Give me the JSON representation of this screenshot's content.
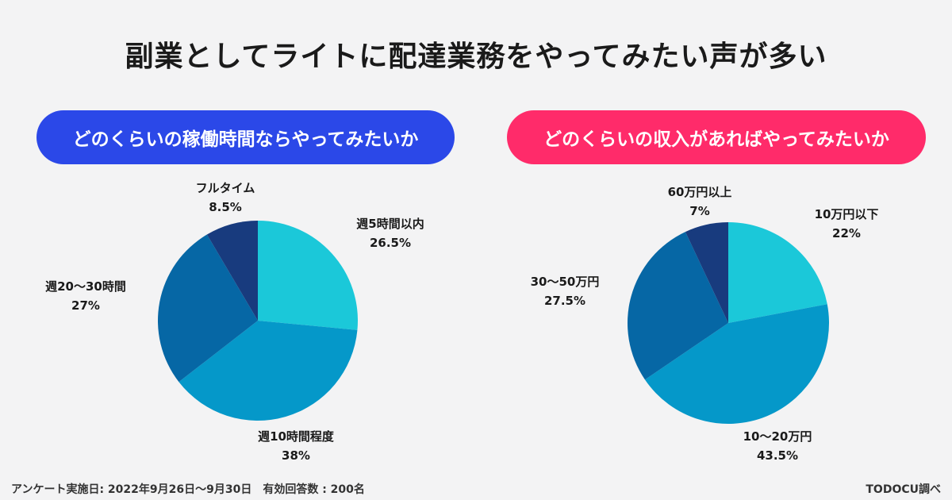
{
  "title": "副業としてライトに配達業務をやってみたい声が多い",
  "footer": {
    "survey": "アンケート実施日: 2022年9月26日〜9月30日　有効回答数 : 200名",
    "source": "TODOCU調べ"
  },
  "chart_data": [
    {
      "type": "pie",
      "title": "どのくらいの稼働時間ならやってみたいか",
      "header_color": "#2b48e8",
      "slices": [
        {
          "label": "週5時間以内",
          "value": 26.5,
          "value_label": "26.5%",
          "color": "#1bc8d9"
        },
        {
          "label": "週10時間程度",
          "value": 38,
          "value_label": "38%",
          "color": "#0598c9"
        },
        {
          "label": "週20〜30時間",
          "value": 27,
          "value_label": "27%",
          "color": "#0667a5"
        },
        {
          "label": "フルタイム",
          "value": 8.5,
          "value_label": "8.5%",
          "color": "#183b7e"
        }
      ]
    },
    {
      "type": "pie",
      "title": "どのくらいの収入があればやってみたいか",
      "header_color": "#ff2b6a",
      "slices": [
        {
          "label": "10万円以下",
          "value": 22,
          "value_label": "22%",
          "color": "#1bc8d9"
        },
        {
          "label": "10〜20万円",
          "value": 43.5,
          "value_label": "43.5%",
          "color": "#0598c9"
        },
        {
          "label": "30〜50万円",
          "value": 27.5,
          "value_label": "27.5%",
          "color": "#0667a5"
        },
        {
          "label": "60万円以上",
          "value": 7,
          "value_label": "7%",
          "color": "#183b7e"
        }
      ]
    }
  ]
}
